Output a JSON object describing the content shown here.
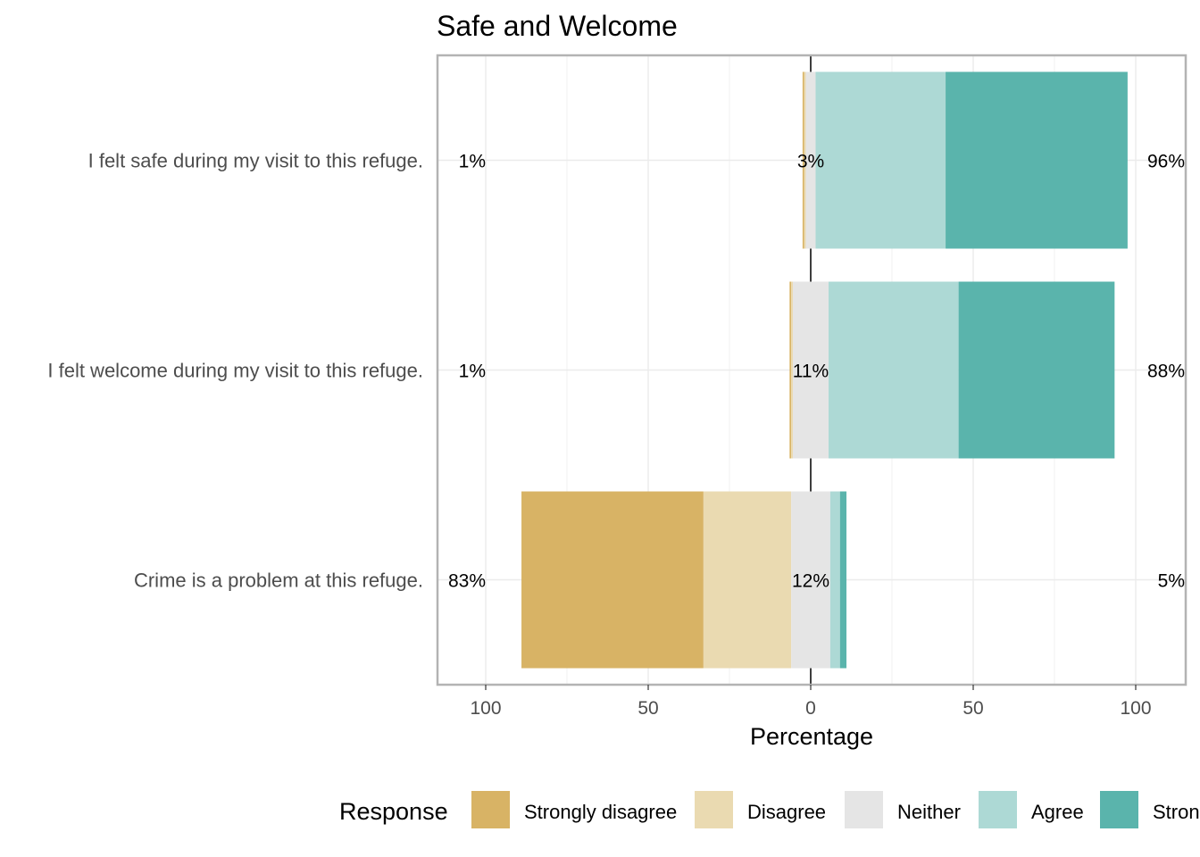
{
  "chart_data": {
    "type": "bar",
    "subtype": "diverging-stacked-likert",
    "title": "Safe and Welcome",
    "xlabel": "Percentage",
    "ylabel": "",
    "xlim": [
      -100,
      100
    ],
    "x_ticks": [
      -100,
      -50,
      0,
      50,
      100
    ],
    "x_tick_labels": [
      "100",
      "50",
      "0",
      "50",
      "100"
    ],
    "legend_title": "Response",
    "legend_position": "bottom",
    "levels": [
      "Strongly disagree",
      "Disagree",
      "Neither",
      "Agree",
      "Strongly agree"
    ],
    "level_labels": [
      "Strongly disagree",
      "Disagree",
      "Neither",
      "Agree",
      "Stron"
    ],
    "colors": {
      "Strongly disagree": "#d8b365",
      "Disagree": "#eadab1",
      "Neither": "#e5e5e5",
      "Agree": "#add9d5",
      "Strongly agree": "#5ab4ac"
    },
    "categories": [
      "I felt safe during my visit to this refuge.",
      "I felt welcome during my visit to this refuge.",
      "Crime is a problem at this refuge."
    ],
    "series": [
      {
        "name": "Strongly disagree",
        "values": [
          0.5,
          0.5,
          56
        ]
      },
      {
        "name": "Disagree",
        "values": [
          0.5,
          0.5,
          27
        ]
      },
      {
        "name": "Neither",
        "values": [
          3,
          11,
          12
        ]
      },
      {
        "name": "Agree",
        "values": [
          40,
          40,
          3
        ]
      },
      {
        "name": "Strongly agree",
        "values": [
          56,
          48,
          2
        ]
      }
    ],
    "labels": {
      "left": [
        "1%",
        "1%",
        "83%"
      ],
      "center": [
        "3%",
        "11%",
        "12%"
      ],
      "right": [
        "96%",
        "88%",
        "5%"
      ]
    }
  }
}
